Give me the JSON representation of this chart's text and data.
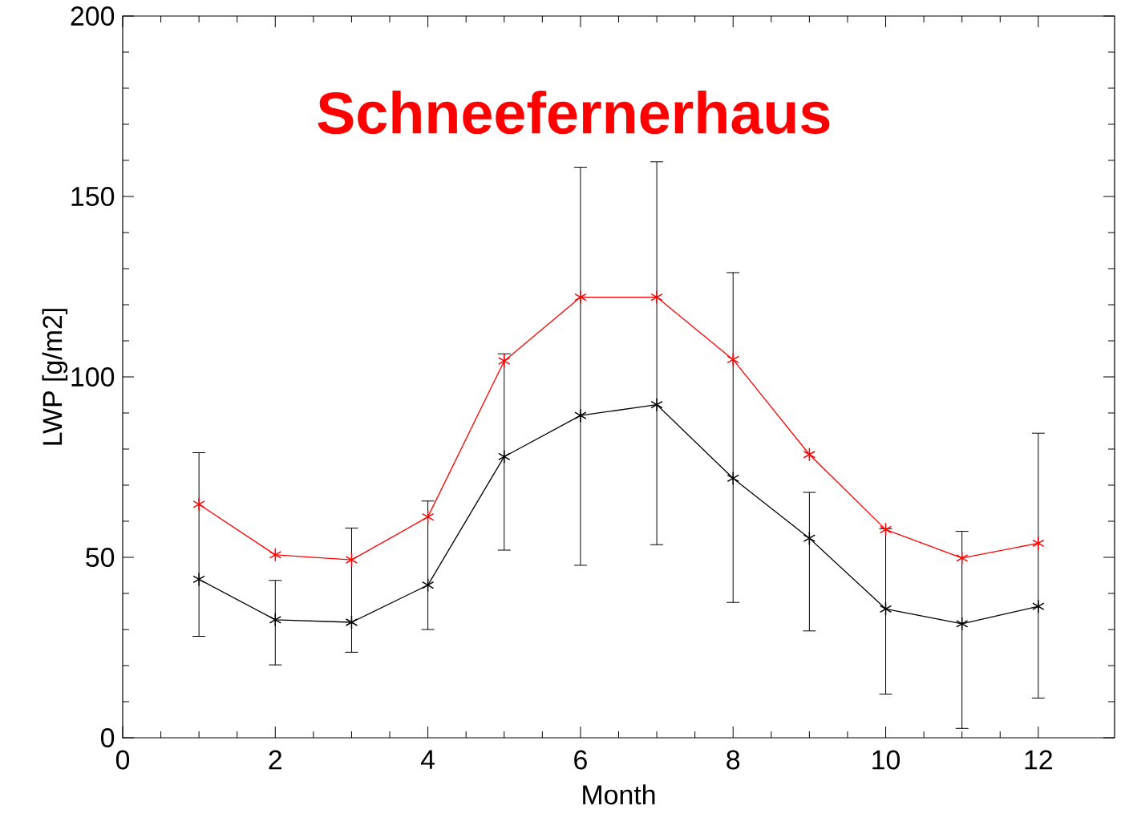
{
  "chart_data": {
    "type": "line",
    "title": "Schneefernerhaus",
    "xlabel": "Month",
    "ylabel": "LWP [g/m2]",
    "x": [
      1,
      2,
      3,
      4,
      5,
      6,
      7,
      8,
      9,
      10,
      11,
      12
    ],
    "series": [
      {
        "color": "#ff0000",
        "values": [
          64.7,
          50.7,
          49.3,
          61.2,
          104.4,
          122.1,
          122.1,
          104.8,
          78.5,
          57.7,
          49.8,
          53.9
        ]
      },
      {
        "color": "#000000",
        "values": [
          43.9,
          32.7,
          32.0,
          42.3,
          77.9,
          89.3,
          92.3,
          71.9,
          55.3,
          35.7,
          31.6,
          36.4
        ],
        "errors": [
          [
            28.1,
            79.0
          ],
          [
            20.2,
            43.6
          ],
          [
            23.7,
            58.1
          ],
          [
            30.0,
            65.6
          ],
          [
            52.0,
            106.4
          ],
          [
            47.8,
            158.1
          ],
          [
            53.5,
            159.6
          ],
          [
            37.5,
            128.9
          ],
          [
            29.6,
            68.0
          ],
          [
            12.1,
            57.9
          ],
          [
            2.6,
            57.2
          ],
          [
            11.0,
            84.4
          ]
        ]
      }
    ],
    "xlim": [
      0,
      13
    ],
    "ylim": [
      0,
      200
    ],
    "xticks": [
      0,
      2,
      4,
      6,
      8,
      10,
      12
    ],
    "yticks": [
      0,
      50,
      100,
      150,
      200
    ],
    "marker": "cross",
    "line_style": "solid",
    "grid": false
  }
}
